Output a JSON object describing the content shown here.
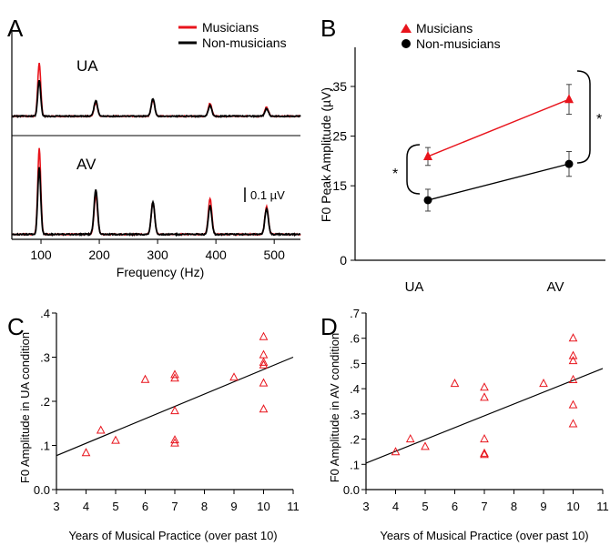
{
  "colors": {
    "musicians": "#e8141c",
    "non_musicians": "#000000"
  },
  "chart_data": [
    {
      "panel": "A",
      "type": "line",
      "xlabel": "Frequency (Hz)",
      "xlim": [
        50,
        545
      ],
      "x_ticks": [
        100,
        200,
        300,
        400,
        500
      ],
      "scale_bar": "0.1 µV",
      "legend": [
        "Musicians",
        "Non-musicians"
      ],
      "legend_position": "top-right",
      "subplots": [
        {
          "label": "UA",
          "series": [
            {
              "name": "Musicians",
              "peaks": [
                [
                  97,
                  1.0
                ],
                [
                  194,
                  0.25
                ],
                [
                  292,
                  0.3
                ],
                [
                  390,
                  0.24
                ],
                [
                  487,
                  0.17
                ]
              ]
            },
            {
              "name": "Non-musicians",
              "peaks": [
                [
                  97,
                  0.68
                ],
                [
                  194,
                  0.29
                ],
                [
                  292,
                  0.32
                ],
                [
                  390,
                  0.2
                ],
                [
                  487,
                  0.14
                ]
              ]
            }
          ]
        },
        {
          "label": "AV",
          "series": [
            {
              "name": "Musicians",
              "peaks": [
                [
                  97,
                  1.4
                ],
                [
                  194,
                  0.62
                ],
                [
                  292,
                  0.52
                ],
                [
                  390,
                  0.58
                ],
                [
                  487,
                  0.45
                ]
              ]
            },
            {
              "name": "Non-musicians",
              "peaks": [
                [
                  97,
                  1.08
                ],
                [
                  194,
                  0.72
                ],
                [
                  292,
                  0.52
                ],
                [
                  390,
                  0.46
                ],
                [
                  487,
                  0.42
                ]
              ]
            }
          ]
        }
      ]
    },
    {
      "panel": "B",
      "type": "line",
      "categories": [
        "UA",
        "AV"
      ],
      "ylabel": "F0 Peak Amplitude (µV)",
      "ylim": [
        0,
        0.35
      ],
      "y_ticks": [
        "0",
        ".15",
        ".25",
        ".35"
      ],
      "y_tick_values": [
        0,
        0.15,
        0.25,
        0.35
      ],
      "legend_position": "top-right",
      "significance": [
        "*",
        "*"
      ],
      "series": [
        {
          "name": "Musicians",
          "values": [
            0.209,
            0.324
          ],
          "errors": [
            0.018,
            0.03
          ]
        },
        {
          "name": "Non-musicians",
          "values": [
            0.121,
            0.194
          ],
          "errors": [
            0.022,
            0.025
          ]
        }
      ]
    },
    {
      "panel": "C",
      "type": "scatter",
      "xlabel": "Years of Musical Practice (over past 10)",
      "ylabel": "F0 Amplitude in UA condition",
      "xlim": [
        3,
        11
      ],
      "ylim": [
        0,
        0.4
      ],
      "x_ticks": [
        "3",
        "4",
        "5",
        "6",
        "7",
        "8",
        "9",
        "10",
        "11"
      ],
      "y_ticks": [
        "0.0",
        ".1",
        ".2",
        ".3",
        ".4"
      ],
      "y_tick_values": [
        0,
        0.1,
        0.2,
        0.3,
        0.4
      ],
      "points": [
        [
          4,
          0.083
        ],
        [
          4.5,
          0.134
        ],
        [
          5,
          0.111
        ],
        [
          6,
          0.249
        ],
        [
          7,
          0.105
        ],
        [
          7,
          0.112
        ],
        [
          7,
          0.178
        ],
        [
          7,
          0.252
        ],
        [
          7,
          0.26
        ],
        [
          9,
          0.254
        ],
        [
          10,
          0.182
        ],
        [
          10,
          0.241
        ],
        [
          10,
          0.282
        ],
        [
          10,
          0.288
        ],
        [
          10,
          0.305
        ],
        [
          10,
          0.346
        ]
      ],
      "fit": [
        [
          3,
          0.077
        ],
        [
          11,
          0.3
        ]
      ]
    },
    {
      "panel": "D",
      "type": "scatter",
      "xlabel": "Years of Musical Practice (over past 10)",
      "ylabel": "F0 Amplitude in AV condition",
      "xlim": [
        3,
        11
      ],
      "ylim": [
        0,
        0.7
      ],
      "x_ticks": [
        "3",
        "4",
        "5",
        "6",
        "7",
        "8",
        "9",
        "10",
        "11"
      ],
      "y_ticks": [
        "0.0",
        ".1",
        ".2",
        ".3",
        ".4",
        ".5",
        ".6",
        ".7"
      ],
      "y_tick_values": [
        0,
        0.1,
        0.2,
        0.3,
        0.4,
        0.5,
        0.6,
        0.7
      ],
      "points": [
        [
          4,
          0.149
        ],
        [
          4.5,
          0.2
        ],
        [
          5,
          0.17
        ],
        [
          6,
          0.42
        ],
        [
          7,
          0.143
        ],
        [
          7,
          0.138
        ],
        [
          7,
          0.2
        ],
        [
          7,
          0.365
        ],
        [
          7,
          0.405
        ],
        [
          9,
          0.42
        ],
        [
          10,
          0.26
        ],
        [
          10,
          0.335
        ],
        [
          10,
          0.435
        ],
        [
          10,
          0.51
        ],
        [
          10,
          0.53
        ],
        [
          10,
          0.6
        ]
      ],
      "fit": [
        [
          3,
          0.105
        ],
        [
          11,
          0.48
        ]
      ]
    }
  ]
}
